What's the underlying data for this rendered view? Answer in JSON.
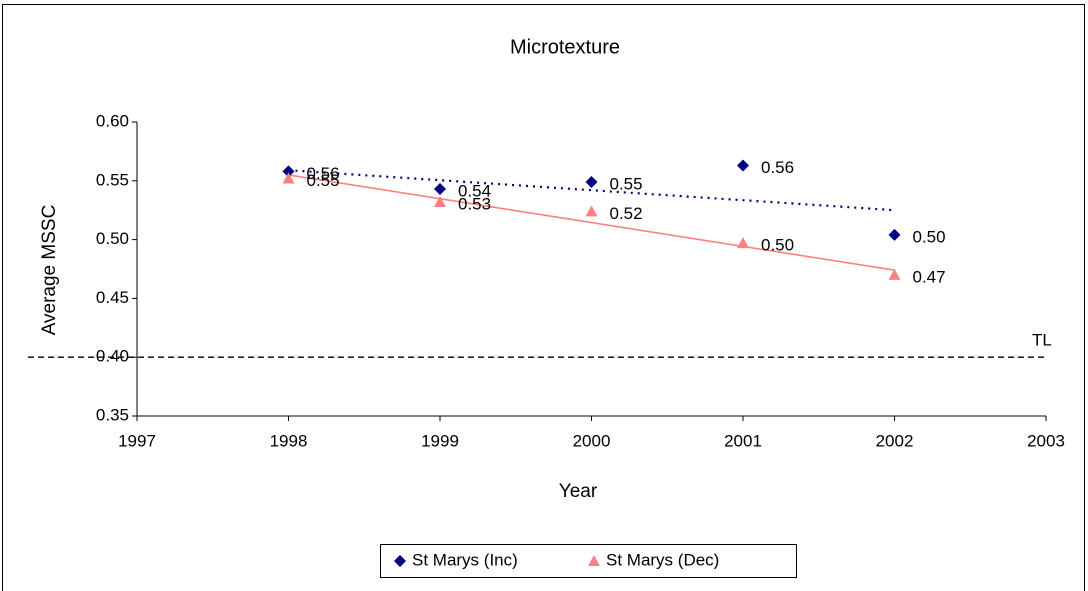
{
  "chart_data": {
    "type": "scatter",
    "title": "Microtexture",
    "x_label": "Year",
    "y_label": "Average MSSC",
    "x": [
      1998,
      1999,
      2000,
      2001,
      2002
    ],
    "series": [
      {
        "name": "St Marys (Inc)",
        "color": "#000080",
        "marker": "diamond",
        "values": [
          0.558,
          0.543,
          0.549,
          0.563,
          0.504
        ],
        "value_labels": [
          "0.56",
          "0.54",
          "0.55",
          "0.56",
          "0.50"
        ],
        "trend": [
          0.559,
          0.525
        ],
        "trend_style": "dotted"
      },
      {
        "name": "St Marys (Dec)",
        "color": "#ff8080",
        "marker": "triangle",
        "values": [
          0.552,
          0.532,
          0.524,
          0.497,
          0.47
        ],
        "value_labels": [
          "0.55",
          "0.53",
          "0.52",
          "0.50",
          "0.47"
        ],
        "trend": [
          0.555,
          0.474
        ],
        "trend_style": "solid"
      }
    ],
    "reference_line": {
      "label": "TL",
      "value": 0.4
    },
    "xlim": [
      1997,
      2003
    ],
    "xticks": [
      1997,
      1998,
      1999,
      2000,
      2001,
      2002,
      2003
    ],
    "ylim": [
      0.35,
      0.6
    ],
    "yticks": [
      0.35,
      {
        "value": 0.4,
        "label": "0.40"
      },
      0.45,
      {
        "value": 0.5,
        "label": "0.50"
      },
      0.55,
      {
        "value": 0.6,
        "label": "0.60"
      }
    ],
    "grid": false,
    "legend": "bottom"
  }
}
